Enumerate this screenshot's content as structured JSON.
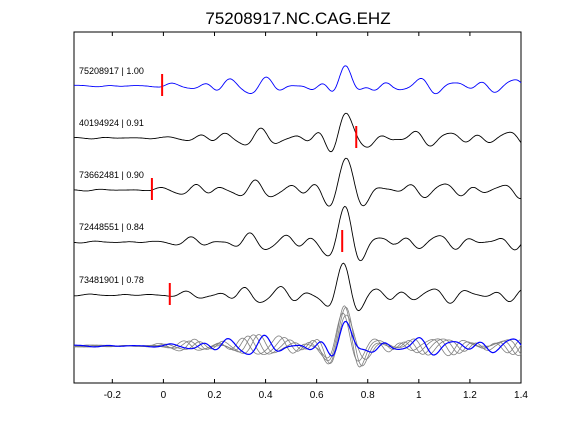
{
  "chart_data": {
    "type": "line",
    "title": "75208917.NC.CAG.EHZ",
    "xlim": [
      -0.35,
      1.4
    ],
    "xticks": [
      -0.2,
      0,
      0.2,
      0.4,
      0.6,
      0.8,
      1,
      1.2,
      1.4
    ],
    "xtick_labels": [
      "-0.2",
      "0",
      "0.2",
      "0.4",
      "0.6",
      "0.8",
      "1",
      "1.2",
      "1.4"
    ],
    "grid": false,
    "series_color_reference": "#0000ff",
    "series_color_other": "#000000",
    "stack_color": "#808080",
    "pick_color": "#ff0000",
    "series": [
      {
        "label": "75208917 | 1.00",
        "pick_time": -0.005,
        "role": "reference"
      },
      {
        "label": "40194924 | 0.91",
        "pick_time": 0.755,
        "role": "match"
      },
      {
        "label": "73662481 | 0.90",
        "pick_time": -0.045,
        "role": "match"
      },
      {
        "label": "72448551 | 0.84",
        "pick_time": 0.7,
        "role": "match"
      },
      {
        "label": "73481901 | 0.78",
        "pick_time": 0.025,
        "role": "match"
      }
    ]
  }
}
